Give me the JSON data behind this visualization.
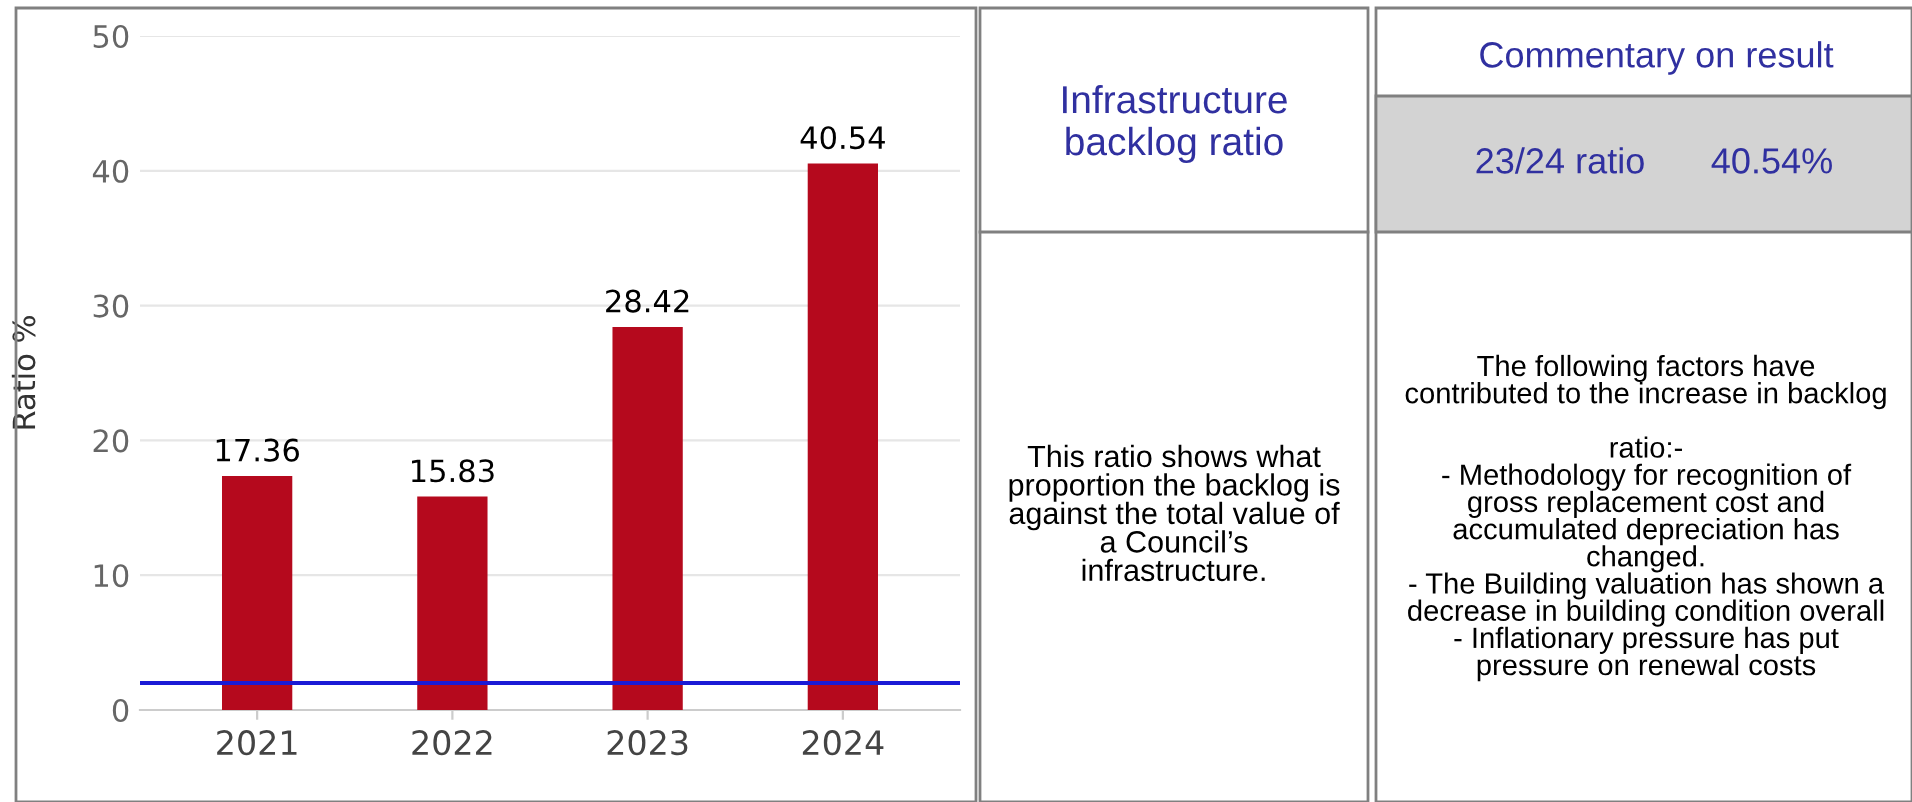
{
  "chart_data": [
    {
      "type": "bar",
      "ylabel": "Ratio %",
      "categories": [
        "2021",
        "2022",
        "2023",
        "2024"
      ],
      "values": [
        17.36,
        15.83,
        28.42,
        40.54
      ],
      "color": "#b5091d",
      "ylim": [
        0,
        50
      ],
      "yticks": [
        0,
        10,
        20,
        30,
        40,
        50
      ],
      "grid": "y",
      "data_labels": true,
      "ref_lines": [
        {
          "axis": "y",
          "value": 2,
          "color": "#1a1ad6"
        }
      ]
    },
    {
      "type": "other",
      "title": "Infrastructure\nbacklog ratio",
      "annotations": [
        "This ratio shows what\nproportion the backlog is\nagainst the total value of\na Council’s\ninfrastructure.",
        "Commentary on result",
        "23/24 ratio",
        "40.54%",
        "The following factors have\ncontributed to the increase in backlog\n\nratio:-\n- Methodology for recognition of\ngross replacement cost and\naccumulated depreciation has\nchanged.\n- The Building valuation has shown a\ndecrease in building condition overall\n- Inflationary pressure has put\npressure on renewal costs"
      ]
    }
  ]
}
